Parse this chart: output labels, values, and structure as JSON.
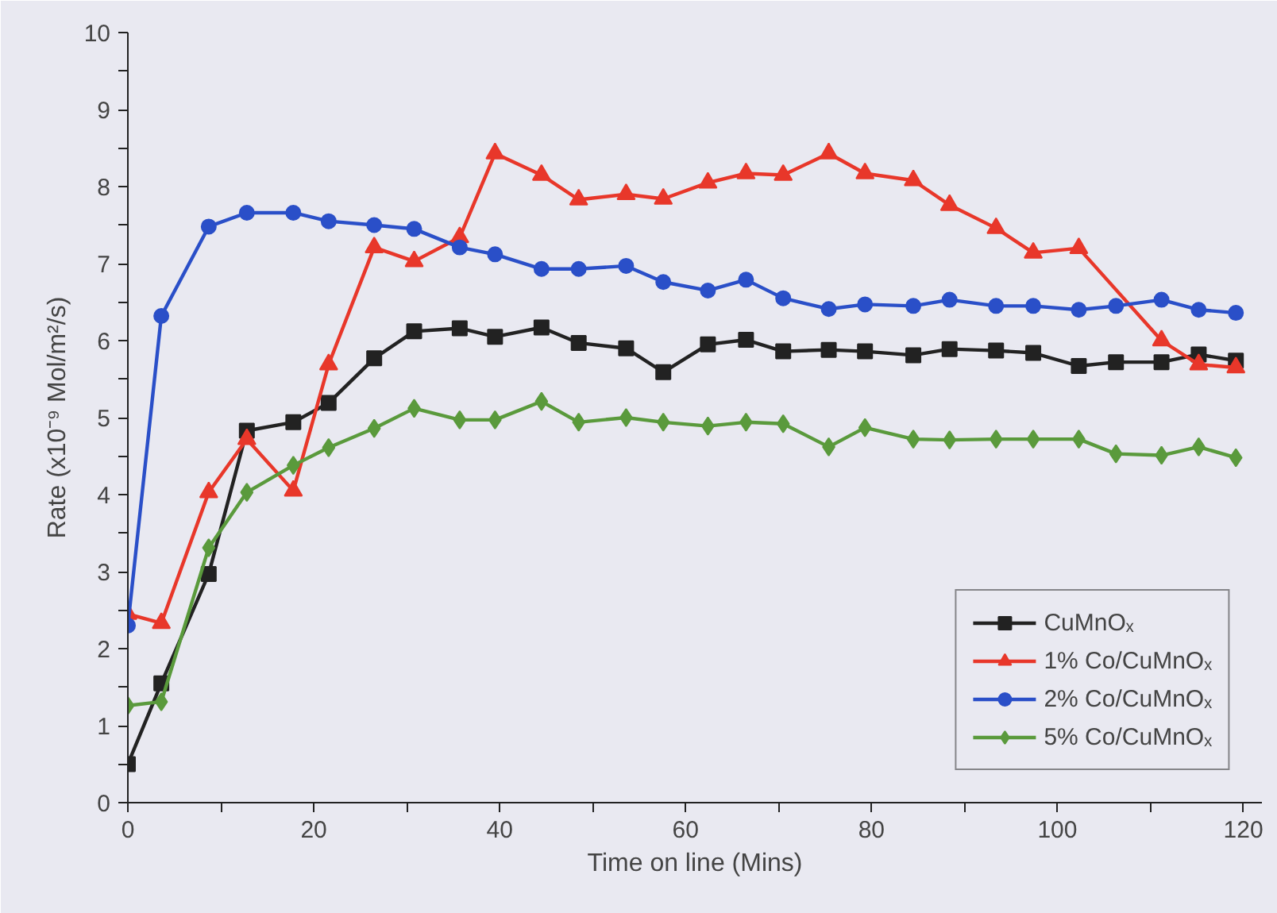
{
  "chart_data": {
    "type": "line",
    "xlabel": "Time on line (Mins)",
    "ylabel": "Rate (x10⁻⁹ Mol/m²/s)",
    "xlim": [
      0,
      122
    ],
    "ylim": [
      0,
      10
    ],
    "xticks": [
      0,
      {
        "value": 10,
        "label": null
      },
      20,
      {
        "value": 30,
        "label": null
      },
      40,
      {
        "value": 50,
        "label": null
      },
      60,
      {
        "value": 70,
        "label": null
      },
      80,
      {
        "value": 90,
        "label": null
      },
      100,
      {
        "value": 110,
        "label": null
      },
      120
    ],
    "yticks": [
      0,
      {
        "value": 0.5,
        "label": null
      },
      1,
      {
        "value": 1.5,
        "label": null
      },
      2,
      {
        "value": 2.5,
        "label": null
      },
      3,
      {
        "value": 3.5,
        "label": null
      },
      4,
      {
        "value": 4.5,
        "label": null
      },
      5,
      {
        "value": 5.5,
        "label": null
      },
      6,
      {
        "value": 6.5,
        "label": null
      },
      7,
      {
        "value": 7.5,
        "label": null
      },
      8,
      {
        "value": 8.5,
        "label": null
      },
      9,
      {
        "value": 9.5,
        "label": null
      },
      10
    ],
    "grid": false,
    "legend": "bottom right",
    "series": [
      {
        "name": "CuMnOₓ",
        "color": "#222222",
        "marker": "square",
        "x": [
          0,
          3.6,
          8.7,
          12.8,
          17.8,
          21.6,
          26.5,
          30.8,
          35.7,
          39.5,
          44.5,
          48.5,
          53.6,
          57.6,
          62.4,
          66.5,
          70.5,
          75.4,
          79.3,
          84.5,
          88.4,
          93.4,
          97.4,
          102.3,
          106.3,
          111.2,
          115.2,
          119.2
        ],
        "values": [
          0.5,
          1.55,
          2.97,
          4.83,
          4.94,
          5.19,
          5.77,
          6.12,
          6.16,
          6.05,
          6.17,
          5.97,
          5.9,
          5.59,
          5.95,
          6.01,
          5.86,
          5.88,
          5.86,
          5.81,
          5.89,
          5.87,
          5.84,
          5.67,
          5.72,
          5.72,
          5.82,
          5.74
        ]
      },
      {
        "name": "1% Co/CuMnOₓ",
        "color": "#e8372a",
        "marker": "triangle",
        "x": [
          0,
          3.6,
          8.7,
          12.8,
          17.8,
          21.6,
          26.5,
          30.8,
          35.7,
          39.5,
          44.5,
          48.5,
          53.6,
          57.6,
          62.4,
          66.5,
          70.5,
          75.4,
          79.3,
          84.5,
          88.4,
          93.4,
          97.4,
          102.3,
          111.2,
          115.2,
          119.2
        ],
        "values": [
          2.45,
          2.33,
          4.03,
          4.72,
          4.05,
          5.69,
          7.21,
          7.03,
          7.34,
          8.43,
          8.15,
          7.83,
          7.9,
          7.84,
          8.05,
          8.17,
          8.15,
          8.43,
          8.17,
          8.08,
          7.76,
          7.46,
          7.14,
          7.2,
          6.0,
          5.69,
          5.65
        ]
      },
      {
        "name": "2% Co/CuMnOₓ",
        "color": "#2a4fc8",
        "marker": "circle",
        "x": [
          0,
          3.6,
          8.7,
          12.8,
          17.8,
          21.6,
          26.5,
          30.8,
          35.7,
          39.5,
          44.5,
          48.5,
          53.6,
          57.6,
          62.4,
          66.5,
          70.5,
          75.4,
          79.3,
          84.5,
          88.4,
          93.4,
          97.4,
          102.3,
          106.3,
          111.2,
          115.2,
          119.2
        ],
        "values": [
          2.3,
          6.32,
          7.48,
          7.66,
          7.66,
          7.55,
          7.5,
          7.45,
          7.21,
          7.12,
          6.93,
          6.93,
          6.97,
          6.76,
          6.65,
          6.79,
          6.55,
          6.41,
          6.47,
          6.45,
          6.53,
          6.45,
          6.45,
          6.4,
          6.45,
          6.53,
          6.4,
          6.36
        ]
      },
      {
        "name": "5% Co/CuMnOₓ",
        "color": "#5a9a3c",
        "marker": "diamond",
        "x": [
          0,
          3.6,
          8.7,
          12.8,
          17.8,
          21.6,
          26.5,
          30.8,
          35.7,
          39.5,
          44.5,
          48.5,
          53.6,
          57.6,
          62.4,
          66.5,
          70.5,
          75.4,
          79.3,
          84.5,
          88.4,
          93.4,
          97.4,
          102.3,
          106.3,
          111.2,
          115.2,
          119.2
        ],
        "values": [
          1.26,
          1.31,
          3.31,
          4.03,
          4.38,
          4.61,
          4.86,
          5.12,
          4.97,
          4.97,
          5.21,
          4.94,
          5.0,
          4.94,
          4.89,
          4.94,
          4.92,
          4.62,
          4.87,
          4.72,
          4.71,
          4.72,
          4.72,
          4.72,
          4.53,
          4.51,
          4.62,
          4.48
        ]
      }
    ]
  }
}
